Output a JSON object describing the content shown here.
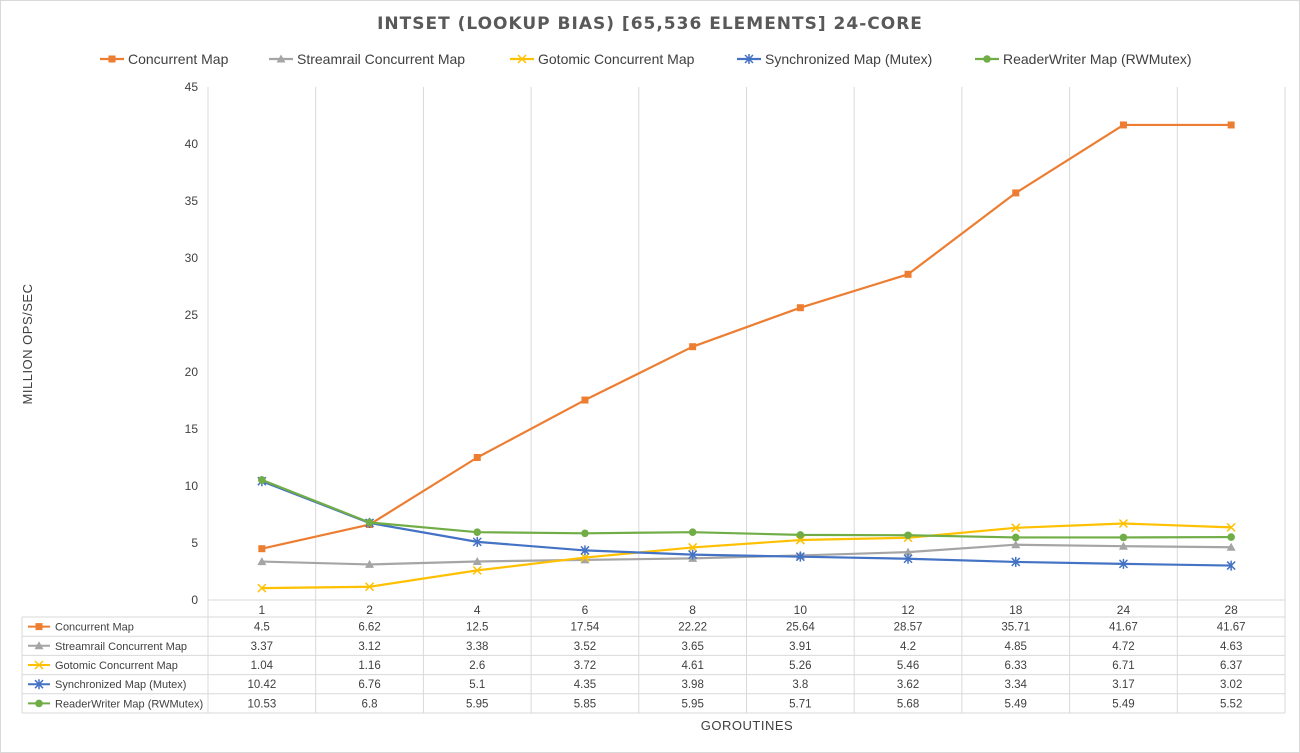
{
  "chart_data": {
    "type": "line",
    "title": "INTSET (LOOKUP BIAS) [65,536 ELEMENTS] 24-CORE",
    "xlabel": "GOROUTINES",
    "ylabel": "MILLION OPS/SEC",
    "ylim": [
      0,
      45
    ],
    "yticks": [
      0,
      5,
      10,
      15,
      20,
      25,
      30,
      35,
      40,
      45
    ],
    "categories": [
      "1",
      "2",
      "4",
      "6",
      "8",
      "10",
      "12",
      "18",
      "24",
      "28"
    ],
    "grid": "vertical",
    "legend_position": "top",
    "series": [
      {
        "name": "Concurrent Map",
        "color": "#ED7D31",
        "marker": "square",
        "values": [
          4.5,
          6.62,
          12.5,
          17.54,
          22.22,
          25.64,
          28.57,
          35.71,
          41.67,
          41.67
        ]
      },
      {
        "name": "Streamrail Concurrent Map",
        "color": "#A5A5A5",
        "marker": "triangle",
        "values": [
          3.37,
          3.12,
          3.38,
          3.52,
          3.65,
          3.91,
          4.2,
          4.85,
          4.72,
          4.63
        ]
      },
      {
        "name": "Gotomic Concurrent Map",
        "color": "#FFC000",
        "marker": "x",
        "values": [
          1.04,
          1.16,
          2.6,
          3.72,
          4.61,
          5.26,
          5.46,
          6.33,
          6.71,
          6.37
        ]
      },
      {
        "name": "Synchronized Map (Mutex)",
        "color": "#4472C4",
        "marker": "star",
        "values": [
          10.42,
          6.76,
          5.1,
          4.35,
          3.98,
          3.8,
          3.62,
          3.34,
          3.17,
          3.02
        ]
      },
      {
        "name": "ReaderWriter Map (RWMutex)",
        "color": "#70AD47",
        "marker": "circle",
        "values": [
          10.53,
          6.8,
          5.95,
          5.85,
          5.95,
          5.71,
          5.68,
          5.49,
          5.49,
          5.52
        ]
      }
    ]
  }
}
